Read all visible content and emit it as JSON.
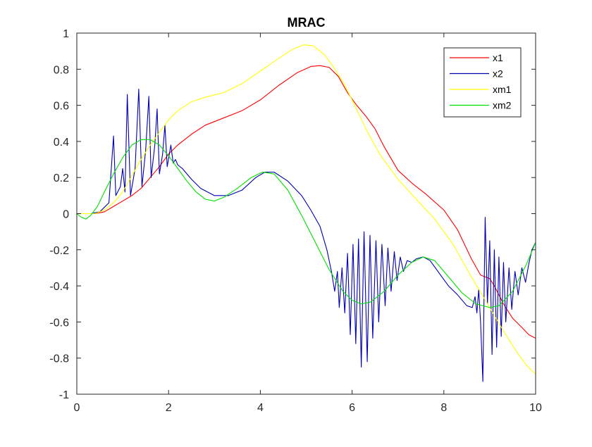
{
  "chart_data": {
    "type": "line",
    "title": "MRAC",
    "xlabel": "",
    "ylabel": "",
    "xlim": [
      0,
      10
    ],
    "ylim": [
      -1,
      1
    ],
    "xticks": [
      0,
      2,
      4,
      6,
      8,
      10
    ],
    "yticks": [
      -1,
      -0.8,
      -0.6,
      -0.4,
      -0.2,
      0,
      0.2,
      0.4,
      0.6,
      0.8,
      1
    ],
    "xtick_labels": [
      "0",
      "2",
      "4",
      "6",
      "8",
      "10"
    ],
    "ytick_labels": [
      "-1",
      "-0.8",
      "-0.6",
      "-0.4",
      "-0.2",
      "0",
      "0.2",
      "0.4",
      "0.6",
      "0.8",
      "1"
    ],
    "grid": false,
    "legend_position": "top-right",
    "series": [
      {
        "name": "x1",
        "color": "#ff0000",
        "points": [
          [
            0,
            0
          ],
          [
            0.4,
            0.0
          ],
          [
            0.6,
            0.01
          ],
          [
            0.8,
            0.04
          ],
          [
            1.0,
            0.07
          ],
          [
            1.2,
            0.1
          ],
          [
            1.4,
            0.14
          ],
          [
            1.6,
            0.2
          ],
          [
            1.8,
            0.26
          ],
          [
            2.0,
            0.33
          ],
          [
            2.2,
            0.38
          ],
          [
            2.5,
            0.44
          ],
          [
            2.8,
            0.49
          ],
          [
            3.2,
            0.53
          ],
          [
            3.6,
            0.57
          ],
          [
            4.0,
            0.63
          ],
          [
            4.4,
            0.71
          ],
          [
            4.8,
            0.78
          ],
          [
            5.1,
            0.815
          ],
          [
            5.3,
            0.82
          ],
          [
            5.5,
            0.81
          ],
          [
            5.7,
            0.76
          ],
          [
            5.9,
            0.67
          ],
          [
            6.1,
            0.6
          ],
          [
            6.3,
            0.54
          ],
          [
            6.5,
            0.47
          ],
          [
            6.7,
            0.37
          ],
          [
            7.0,
            0.24
          ],
          [
            7.3,
            0.17
          ],
          [
            7.6,
            0.11
          ],
          [
            8.0,
            0.02
          ],
          [
            8.3,
            -0.09
          ],
          [
            8.6,
            -0.25
          ],
          [
            8.8,
            -0.34
          ],
          [
            9.0,
            -0.36
          ],
          [
            9.1,
            -0.4
          ],
          [
            9.3,
            -0.5
          ],
          [
            9.5,
            -0.58
          ],
          [
            9.7,
            -0.63
          ],
          [
            9.85,
            -0.67
          ],
          [
            10,
            -0.69
          ]
        ]
      },
      {
        "name": "x2",
        "color": "#0000b4",
        "points": [
          [
            0,
            0
          ],
          [
            0.3,
            0.0
          ],
          [
            0.5,
            0.01
          ],
          [
            0.7,
            0.06
          ],
          [
            0.8,
            0.43
          ],
          [
            0.85,
            0.1
          ],
          [
            0.95,
            0.15
          ],
          [
            1.0,
            0.25
          ],
          [
            1.05,
            0.12
          ],
          [
            1.1,
            0.66
          ],
          [
            1.17,
            0.1
          ],
          [
            1.27,
            0.25
          ],
          [
            1.35,
            0.69
          ],
          [
            1.42,
            0.15
          ],
          [
            1.5,
            0.35
          ],
          [
            1.57,
            0.65
          ],
          [
            1.62,
            0.2
          ],
          [
            1.7,
            0.38
          ],
          [
            1.75,
            0.58
          ],
          [
            1.8,
            0.22
          ],
          [
            1.87,
            0.33
          ],
          [
            1.92,
            0.49
          ],
          [
            1.97,
            0.26
          ],
          [
            2.05,
            0.38
          ],
          [
            2.1,
            0.28
          ],
          [
            2.15,
            0.3
          ],
          [
            2.2,
            0.27
          ],
          [
            2.3,
            0.25
          ],
          [
            2.5,
            0.19
          ],
          [
            2.7,
            0.14
          ],
          [
            3.0,
            0.1
          ],
          [
            3.3,
            0.1
          ],
          [
            3.6,
            0.13
          ],
          [
            3.9,
            0.2
          ],
          [
            4.1,
            0.23
          ],
          [
            4.3,
            0.23
          ],
          [
            4.6,
            0.18
          ],
          [
            4.9,
            0.1
          ],
          [
            5.1,
            0.02
          ],
          [
            5.3,
            -0.07
          ],
          [
            5.45,
            -0.2
          ],
          [
            5.55,
            -0.32
          ],
          [
            5.62,
            -0.43
          ],
          [
            5.68,
            -0.32
          ],
          [
            5.72,
            -0.52
          ],
          [
            5.78,
            -0.3
          ],
          [
            5.84,
            -0.55
          ],
          [
            5.9,
            -0.22
          ],
          [
            5.96,
            -0.67
          ],
          [
            6.02,
            -0.17
          ],
          [
            6.08,
            -0.72
          ],
          [
            6.14,
            -0.14
          ],
          [
            6.2,
            -0.85
          ],
          [
            6.26,
            -0.1
          ],
          [
            6.33,
            -0.82
          ],
          [
            6.39,
            -0.12
          ],
          [
            6.45,
            -0.69
          ],
          [
            6.52,
            -0.15
          ],
          [
            6.58,
            -0.6
          ],
          [
            6.65,
            -0.17
          ],
          [
            6.72,
            -0.51
          ],
          [
            6.78,
            -0.19
          ],
          [
            6.85,
            -0.43
          ],
          [
            6.92,
            -0.21
          ],
          [
            6.98,
            -0.37
          ],
          [
            7.05,
            -0.24
          ],
          [
            7.12,
            -0.32
          ],
          [
            7.2,
            -0.26
          ],
          [
            7.3,
            -0.27
          ],
          [
            7.4,
            -0.25
          ],
          [
            7.55,
            -0.24
          ],
          [
            7.7,
            -0.26
          ],
          [
            7.9,
            -0.33
          ],
          [
            8.1,
            -0.4
          ],
          [
            8.3,
            -0.45
          ],
          [
            8.5,
            -0.51
          ],
          [
            8.62,
            -0.52
          ],
          [
            8.68,
            -0.46
          ],
          [
            8.72,
            -0.55
          ],
          [
            8.76,
            -0.42
          ],
          [
            8.8,
            -0.6
          ],
          [
            8.85,
            -0.93
          ],
          [
            8.9,
            -0.02
          ],
          [
            8.95,
            -0.5
          ],
          [
            9.0,
            -0.15
          ],
          [
            9.05,
            -0.78
          ],
          [
            9.1,
            -0.2
          ],
          [
            9.15,
            -0.74
          ],
          [
            9.2,
            -0.24
          ],
          [
            9.25,
            -0.68
          ],
          [
            9.3,
            -0.27
          ],
          [
            9.35,
            -0.6
          ],
          [
            9.42,
            -0.3
          ],
          [
            9.48,
            -0.53
          ],
          [
            9.55,
            -0.32
          ],
          [
            9.62,
            -0.45
          ],
          [
            9.7,
            -0.3
          ],
          [
            9.78,
            -0.38
          ],
          [
            9.85,
            -0.28
          ],
          [
            9.92,
            -0.2
          ],
          [
            10,
            -0.16
          ]
        ]
      },
      {
        "name": "xm1",
        "color": "#ffff00",
        "points": [
          [
            0,
            0
          ],
          [
            0.4,
            0.0
          ],
          [
            0.6,
            0.02
          ],
          [
            0.8,
            0.06
          ],
          [
            1.0,
            0.12
          ],
          [
            1.2,
            0.21
          ],
          [
            1.4,
            0.3
          ],
          [
            1.6,
            0.38
          ],
          [
            1.8,
            0.45
          ],
          [
            2.0,
            0.52
          ],
          [
            2.2,
            0.57
          ],
          [
            2.5,
            0.62
          ],
          [
            2.8,
            0.645
          ],
          [
            3.2,
            0.67
          ],
          [
            3.6,
            0.72
          ],
          [
            4.0,
            0.79
          ],
          [
            4.4,
            0.86
          ],
          [
            4.7,
            0.91
          ],
          [
            4.95,
            0.935
          ],
          [
            5.15,
            0.93
          ],
          [
            5.4,
            0.88
          ],
          [
            5.6,
            0.81
          ],
          [
            5.8,
            0.73
          ],
          [
            6.0,
            0.63
          ],
          [
            6.3,
            0.47
          ],
          [
            6.6,
            0.33
          ],
          [
            7.0,
            0.19
          ],
          [
            7.4,
            0.08
          ],
          [
            7.8,
            -0.03
          ],
          [
            8.2,
            -0.17
          ],
          [
            8.6,
            -0.35
          ],
          [
            9.0,
            -0.52
          ],
          [
            9.3,
            -0.65
          ],
          [
            9.6,
            -0.77
          ],
          [
            9.8,
            -0.84
          ],
          [
            10,
            -0.89
          ]
        ]
      },
      {
        "name": "xm2",
        "color": "#00e000",
        "points": [
          [
            0,
            0
          ],
          [
            0.1,
            -0.02
          ],
          [
            0.2,
            -0.03
          ],
          [
            0.3,
            -0.01
          ],
          [
            0.45,
            0.04
          ],
          [
            0.6,
            0.12
          ],
          [
            0.8,
            0.22
          ],
          [
            1.0,
            0.31
          ],
          [
            1.2,
            0.38
          ],
          [
            1.4,
            0.41
          ],
          [
            1.6,
            0.41
          ],
          [
            1.8,
            0.38
          ],
          [
            2.0,
            0.32
          ],
          [
            2.2,
            0.25
          ],
          [
            2.4,
            0.18
          ],
          [
            2.6,
            0.12
          ],
          [
            2.8,
            0.08
          ],
          [
            3.0,
            0.07
          ],
          [
            3.2,
            0.09
          ],
          [
            3.5,
            0.14
          ],
          [
            3.8,
            0.2
          ],
          [
            4.05,
            0.23
          ],
          [
            4.3,
            0.22
          ],
          [
            4.6,
            0.13
          ],
          [
            4.9,
            -0.01
          ],
          [
            5.2,
            -0.16
          ],
          [
            5.5,
            -0.31
          ],
          [
            5.8,
            -0.43
          ],
          [
            6.0,
            -0.48
          ],
          [
            6.2,
            -0.5
          ],
          [
            6.4,
            -0.49
          ],
          [
            6.7,
            -0.43
          ],
          [
            7.0,
            -0.34
          ],
          [
            7.3,
            -0.27
          ],
          [
            7.55,
            -0.24
          ],
          [
            7.8,
            -0.26
          ],
          [
            8.1,
            -0.35
          ],
          [
            8.4,
            -0.44
          ],
          [
            8.7,
            -0.5
          ],
          [
            9.0,
            -0.52
          ],
          [
            9.2,
            -0.51
          ],
          [
            9.5,
            -0.43
          ],
          [
            9.8,
            -0.28
          ],
          [
            10,
            -0.16
          ]
        ]
      }
    ]
  }
}
